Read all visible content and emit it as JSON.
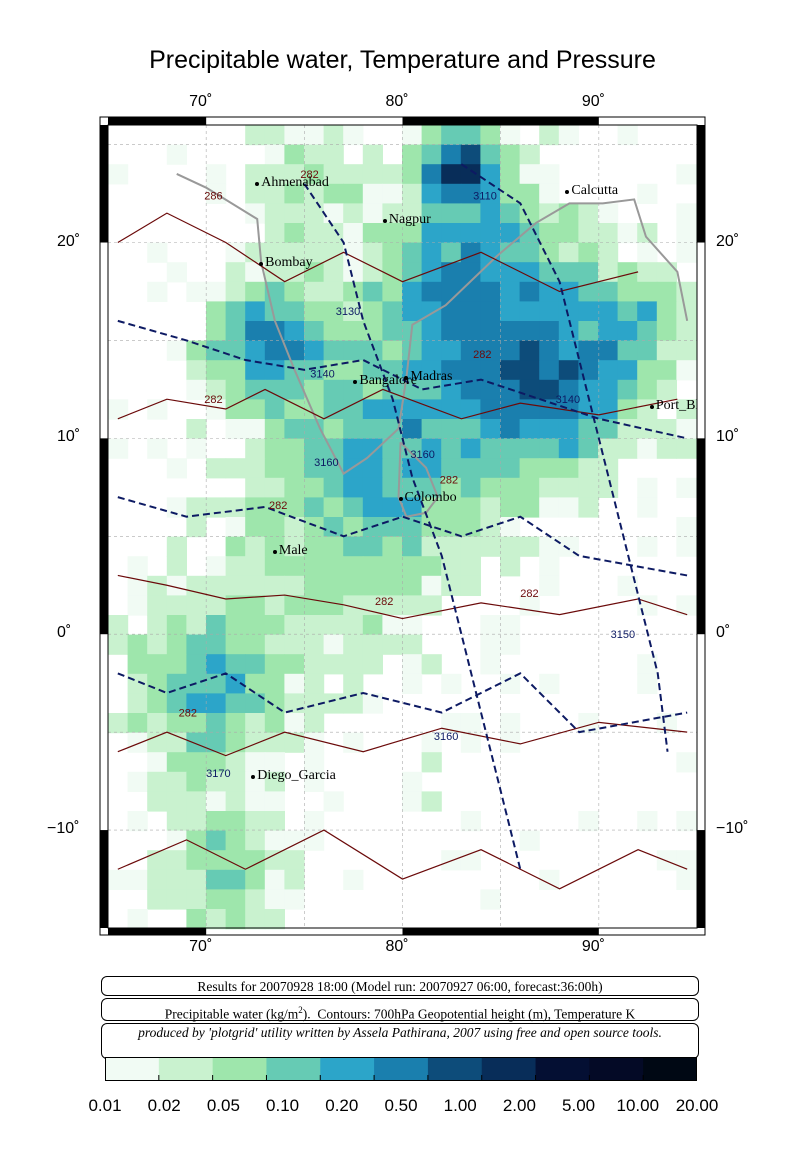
{
  "title": "Precipitable water, Temperature and Pressure",
  "map": {
    "lon_range": [
      65,
      95
    ],
    "lat_range": [
      -15,
      26
    ],
    "lon_ticks": [
      "70˚",
      "80˚",
      "90˚"
    ],
    "lat_ticks": [
      "20˚",
      "10˚",
      "0˚",
      "−10˚"
    ],
    "cities": [
      {
        "name": "Ahmenabad",
        "lon": 72.6,
        "lat": 23.0
      },
      {
        "name": "Calcutta",
        "lon": 88.4,
        "lat": 22.6
      },
      {
        "name": "Nagpur",
        "lon": 79.1,
        "lat": 21.1
      },
      {
        "name": "Bombay",
        "lon": 72.8,
        "lat": 18.9
      },
      {
        "name": "Madras",
        "lon": 80.2,
        "lat": 13.1
      },
      {
        "name": "Bangalore",
        "lon": 77.6,
        "lat": 12.9
      },
      {
        "name": "Port_Blair",
        "lon": 92.7,
        "lat": 11.6
      },
      {
        "name": "Colombo",
        "lon": 79.9,
        "lat": 6.9
      },
      {
        "name": "Male",
        "lon": 73.5,
        "lat": 4.2
      },
      {
        "name": "Diego_Garcia",
        "lon": 72.4,
        "lat": -7.3
      }
    ],
    "contour_labels": [
      "286",
      "282",
      "3130",
      "3110",
      "3140",
      "282",
      "282",
      "3140",
      "3160",
      "3160",
      "282",
      "282",
      "282",
      "3150",
      "3160",
      "282",
      "3170",
      "282"
    ]
  },
  "info": {
    "results": "Results for 20070928 18:00 (Model run: 20070927 06:00, forecast:36:00h)",
    "legend": "Precipitable water (kg/m²).  Contours: 700hPa Geopotential height (m), Temperature K",
    "credit": "produced by 'plotgrid' utility written by Assela Pathirana, 2007 using free and open source tools."
  },
  "colorbar": {
    "labels": [
      "0.01",
      "0.02",
      "0.05",
      "0.10",
      "0.20",
      "0.50",
      "1.00",
      "2.00",
      "5.00",
      "10.00",
      "20.00"
    ],
    "colors": [
      "#f1fbf4",
      "#c9f2cf",
      "#9ee6ac",
      "#66cbb4",
      "#2ca5c9",
      "#1a7fae",
      "#0d4c7a",
      "#082d59",
      "#040f33",
      "#040a26",
      "#000814"
    ]
  }
}
